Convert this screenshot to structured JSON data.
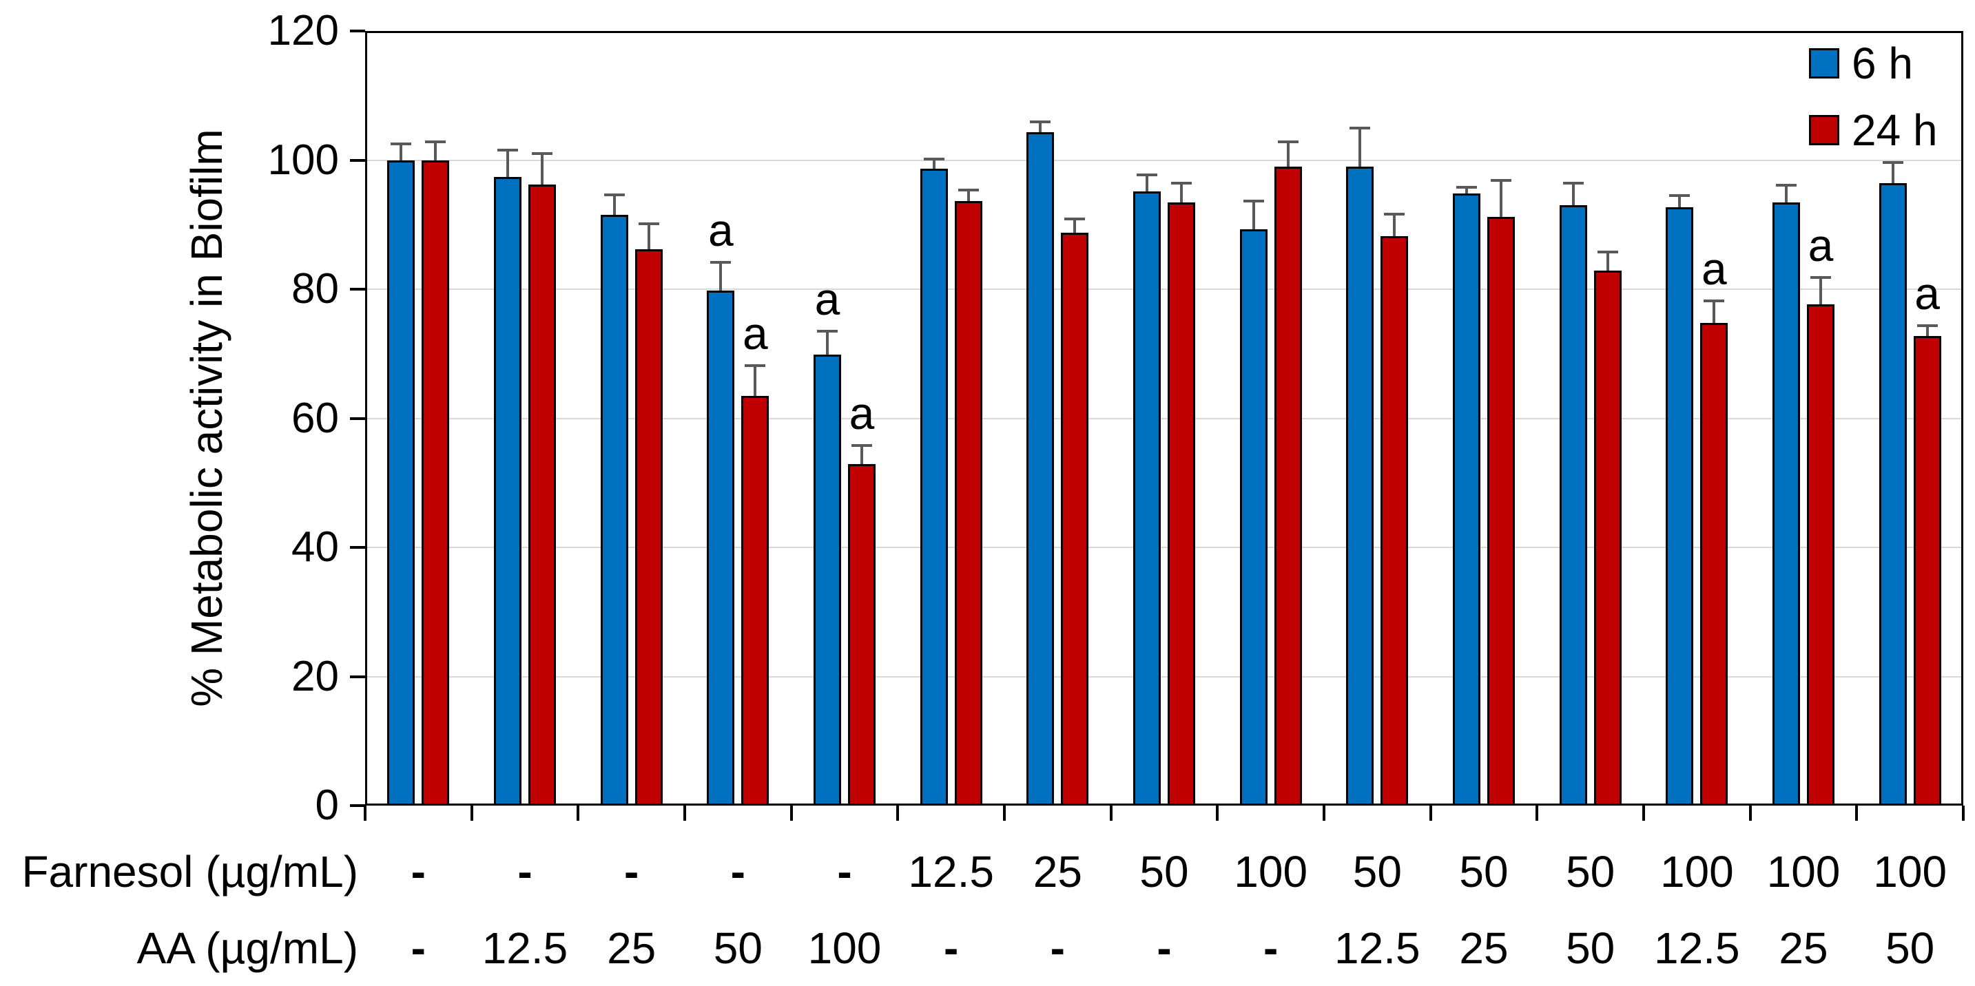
{
  "chart_data": {
    "type": "bar",
    "title": "",
    "ylabel": "% Metabolic activity in Biofilm",
    "xlabel": "",
    "ylim": [
      0,
      120
    ],
    "yticks": [
      0,
      20,
      40,
      60,
      80,
      100,
      120
    ],
    "grid": "horizontal gridlines every 20 units, light gray",
    "legend_position": "top-right inside plot area",
    "significance_symbol": "a",
    "x_rows": [
      {
        "label": "Farnesol (µg/mL)",
        "values": [
          "-",
          "-",
          "-",
          "-",
          "-",
          "12.5",
          "25",
          "50",
          "100",
          "50",
          "50",
          "50",
          "100",
          "100",
          "100"
        ]
      },
      {
        "label": "AA (µg/mL)",
        "values": [
          "-",
          "12.5",
          "25",
          "50",
          "100",
          "-",
          "-",
          "-",
          "-",
          "12.5",
          "25",
          "50",
          "12.5",
          "25",
          "50"
        ]
      }
    ],
    "series": [
      {
        "name": "6 h",
        "color": "#0070C0",
        "values": [
          100.0,
          97.4,
          91.5,
          79.8,
          69.9,
          98.7,
          104.3,
          95.2,
          89.3,
          99.0,
          94.8,
          93.0,
          92.7,
          93.4,
          96.4
        ],
        "errors": [
          2.5,
          4.2,
          3.1,
          4.4,
          3.6,
          1.5,
          1.6,
          2.5,
          4.4,
          6.0,
          1.0,
          3.4,
          1.8,
          2.7,
          3.2
        ],
        "annotations": [
          "",
          "",
          "",
          "a",
          "a",
          "",
          "",
          "",
          "",
          "",
          "",
          "",
          "",
          "",
          ""
        ]
      },
      {
        "name": "24 h",
        "color": "#C00000",
        "values": [
          100.0,
          96.2,
          86.2,
          63.5,
          52.9,
          93.7,
          88.8,
          93.4,
          99.0,
          88.2,
          91.2,
          82.9,
          74.8,
          77.7,
          72.7
        ],
        "errors": [
          2.8,
          4.8,
          3.9,
          4.7,
          2.9,
          1.7,
          2.1,
          3.0,
          3.8,
          3.4,
          5.7,
          2.9,
          3.4,
          4.1,
          1.6
        ],
        "annotations": [
          "",
          "",
          "",
          "a",
          "a",
          "",
          "",
          "",
          "",
          "",
          "",
          "",
          "a",
          "a",
          "a"
        ]
      }
    ],
    "colors": {
      "axis": "#000000",
      "gridline": "#D9D9D9",
      "error_bar": "#595959",
      "background": "#FFFFFF",
      "series_6h": "#0070C0",
      "series_24h": "#C00000"
    }
  }
}
